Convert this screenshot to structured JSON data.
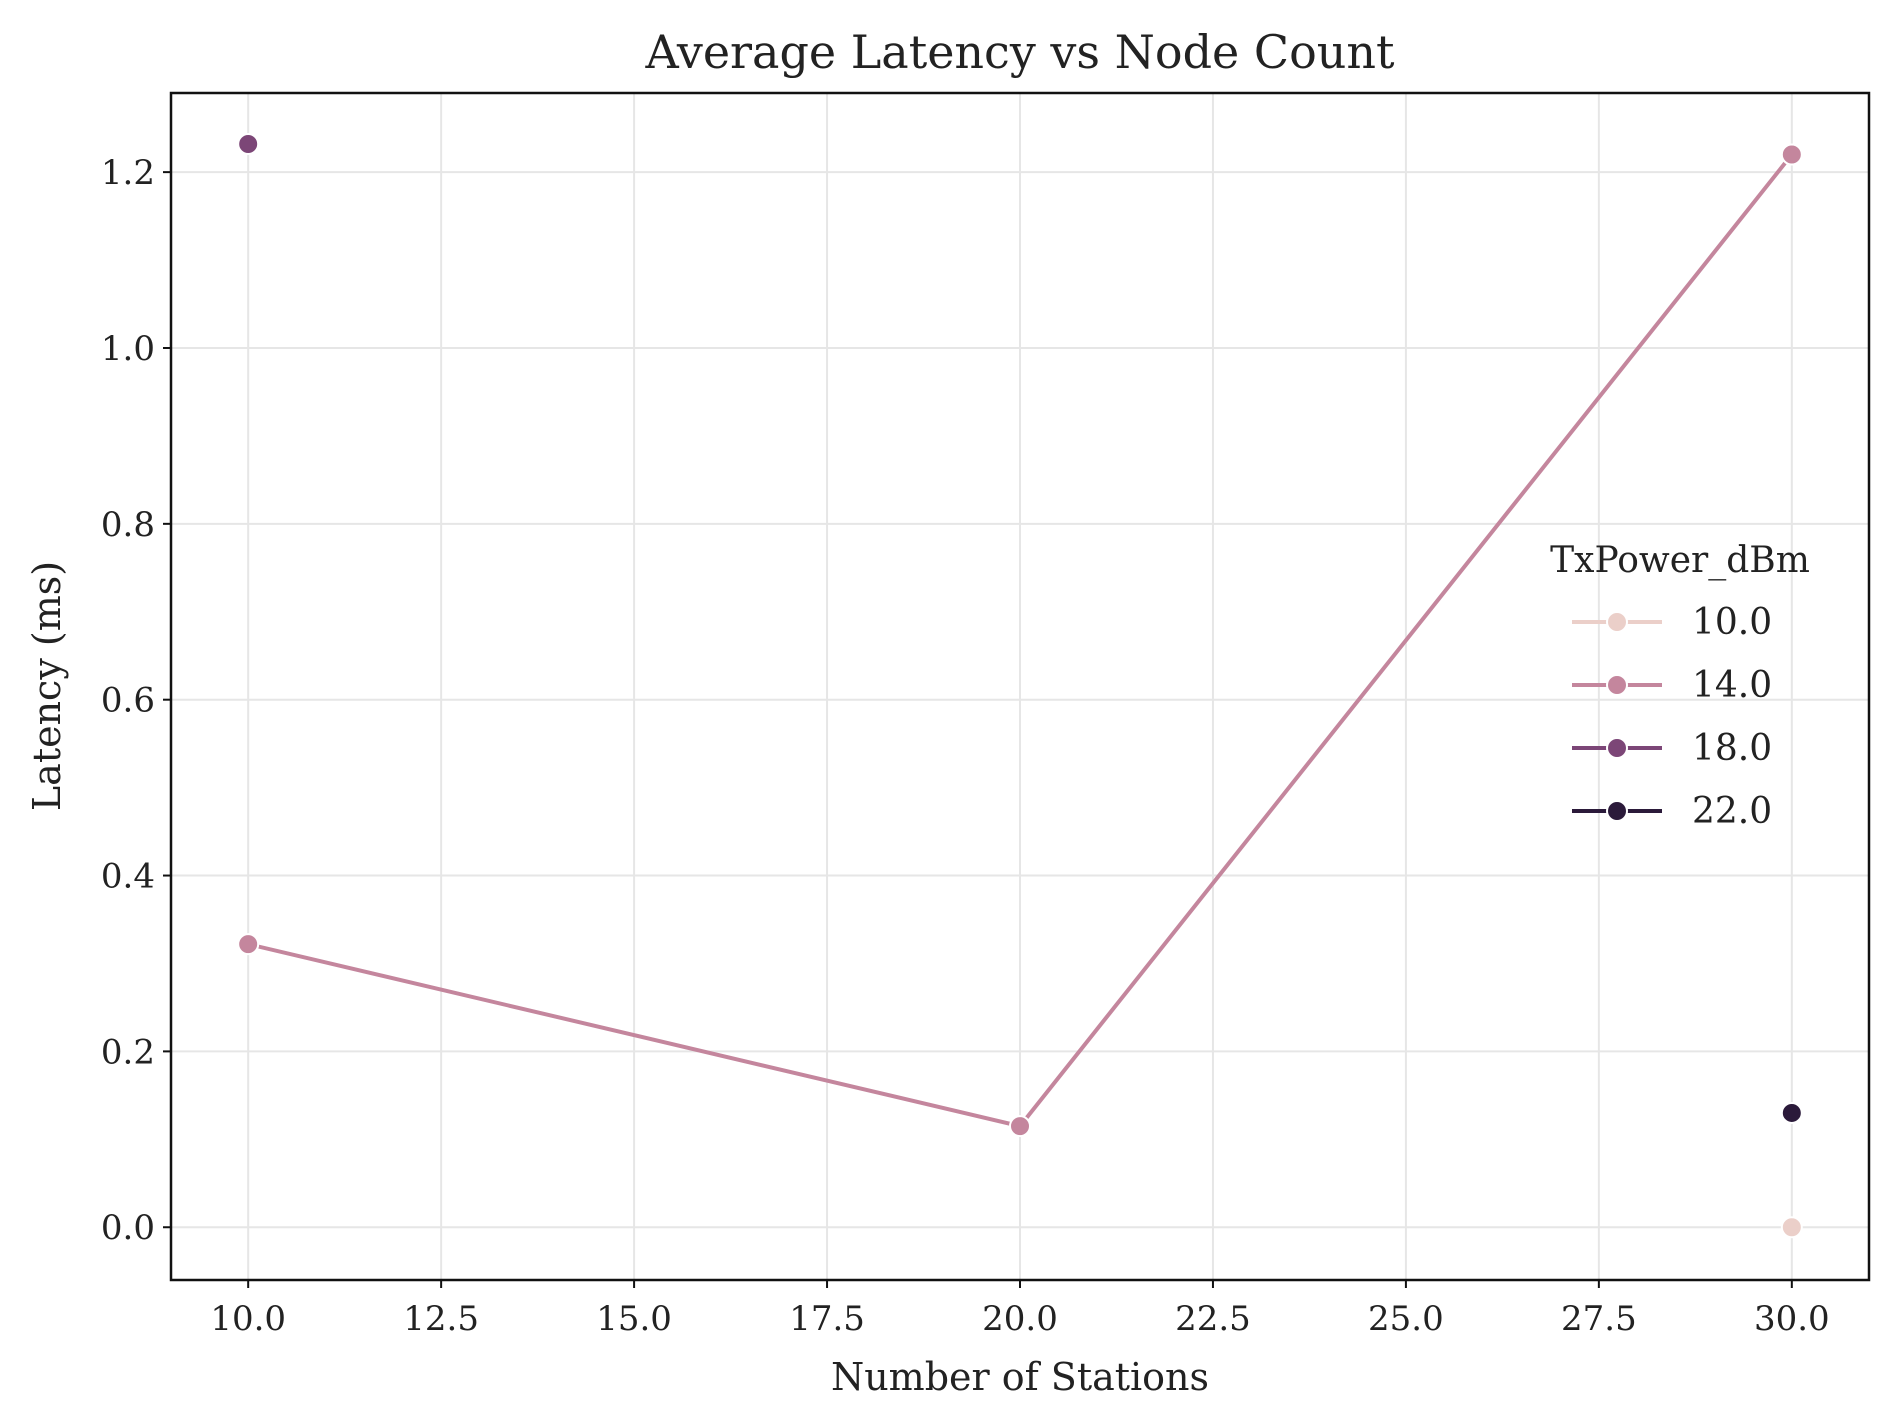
{
  "chart_data": {
    "type": "line",
    "title": "Average Latency vs Node Count",
    "xlabel": "Number of Stations",
    "ylabel": "Latency (ms)",
    "xlim": [
      9.0,
      31.0
    ],
    "ylim": [
      -0.06,
      1.29
    ],
    "xticks": [
      10.0,
      12.5,
      15.0,
      17.5,
      20.0,
      22.5,
      25.0,
      27.5,
      30.0
    ],
    "xtick_labels": [
      "10.0",
      "12.5",
      "15.0",
      "17.5",
      "20.0",
      "22.5",
      "25.0",
      "27.5",
      "30.0"
    ],
    "yticks": [
      0.0,
      0.2,
      0.4,
      0.6,
      0.8,
      1.0,
      1.2
    ],
    "ytick_labels": [
      "0.0",
      "0.2",
      "0.4",
      "0.6",
      "0.8",
      "1.0",
      "1.2"
    ],
    "grid": true,
    "legend": {
      "title": "TxPower_dBm",
      "placement": "center-right"
    },
    "series": [
      {
        "name": "10.0",
        "color": "#ebcfc9",
        "points": [
          {
            "x": 30,
            "y": 0.0
          }
        ]
      },
      {
        "name": "14.0",
        "color": "#c4869d",
        "points": [
          {
            "x": 10,
            "y": 0.322
          },
          {
            "x": 20,
            "y": 0.115
          },
          {
            "x": 30,
            "y": 1.22
          }
        ]
      },
      {
        "name": "18.0",
        "color": "#7c4677",
        "points": [
          {
            "x": 10,
            "y": 1.232
          }
        ]
      },
      {
        "name": "22.0",
        "color": "#2b1a3a",
        "points": [
          {
            "x": 30,
            "y": 0.13
          }
        ]
      }
    ]
  }
}
